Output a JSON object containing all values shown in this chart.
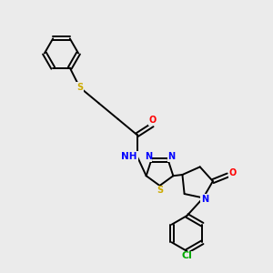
{
  "background_color": "#ebebeb",
  "bond_color": "#000000",
  "atom_colors": {
    "N": "#0000ff",
    "O": "#ff0000",
    "S": "#ccaa00",
    "Cl": "#00aa00",
    "H": "#707070",
    "C": "#000000"
  },
  "figsize": [
    3.0,
    3.0
  ],
  "dpi": 100
}
